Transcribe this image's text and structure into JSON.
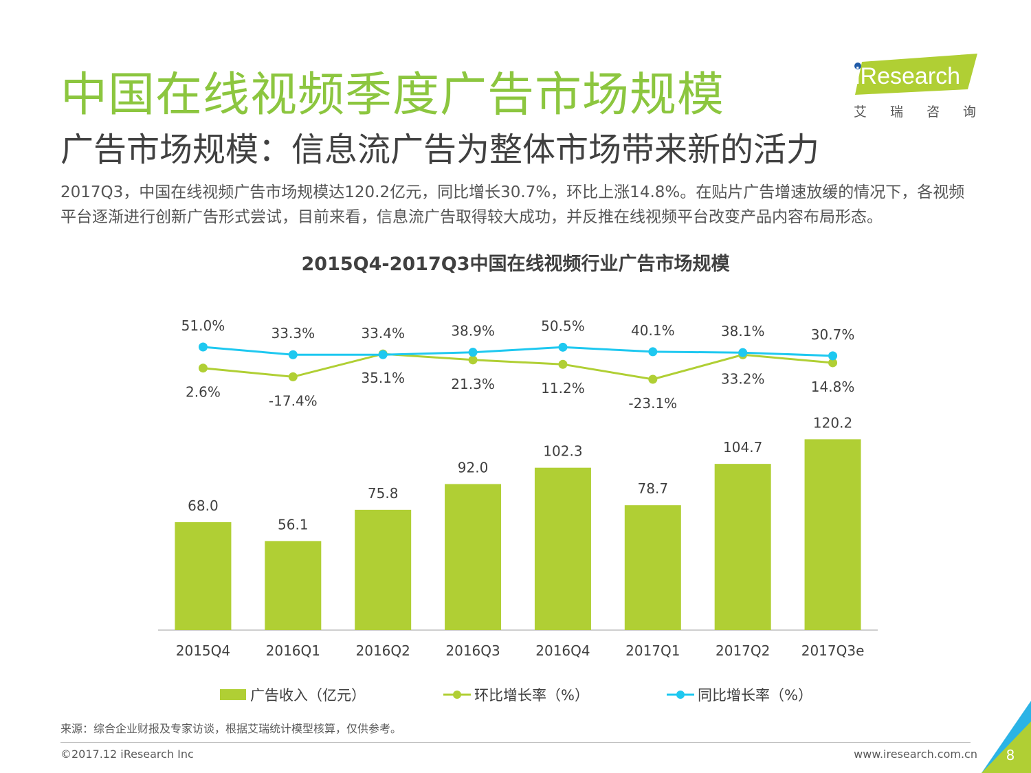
{
  "page": {
    "title": "中国在线视频季度广告市场规模",
    "subtitle": "广告市场规模：信息流广告为整体市场带来新的活力",
    "description": "2017Q3，中国在线视频广告市场规模达120.2亿元，同比增长30.7%，环比上涨14.8%。在贴片广告增速放缓的情况下，各视频平台逐渐进行创新广告形式尝试，目前来看，信息流广告取得较大成功，并反推在线视频平台改变产品内容布局形态。",
    "logo_text": "iResearch",
    "logo_cn": "艾瑞咨询",
    "source": "来源：综合企业财报及专家访谈，根据艾瑞统计模型核算，仅供参考。",
    "copyright": "©2017.12 iResearch Inc",
    "website": "www.iresearch.com.cn",
    "page_number": "8"
  },
  "colors": {
    "title_green": "#8cc63f",
    "bar": "#b0cf34",
    "mom_line": "#b0cf34",
    "yoy_line": "#1ec8f0",
    "text": "#404040"
  },
  "chart_data": {
    "type": "bar",
    "title": "2015Q4-2017Q3中国在线视频行业广告市场规模",
    "categories": [
      "2015Q4",
      "2016Q1",
      "2016Q2",
      "2016Q3",
      "2016Q4",
      "2017Q1",
      "2017Q2",
      "2017Q3e"
    ],
    "series": [
      {
        "name": "广告收入（亿元）",
        "type": "bar",
        "values": [
          68.0,
          56.1,
          75.8,
          92.0,
          102.3,
          78.7,
          104.7,
          120.2
        ],
        "labels": [
          "68.0",
          "56.1",
          "75.8",
          "92.0",
          "102.3",
          "78.7",
          "104.7",
          "120.2"
        ]
      },
      {
        "name": "环比增长率（%）",
        "type": "line",
        "values": [
          2.6,
          -17.4,
          35.1,
          21.3,
          11.2,
          -23.1,
          33.2,
          14.8
        ],
        "labels": [
          "2.6%",
          "-17.4%",
          "35.1%",
          "21.3%",
          "11.2%",
          "-23.1%",
          "33.2%",
          "14.8%"
        ]
      },
      {
        "name": "同比增长率（%）",
        "type": "line",
        "values": [
          51.0,
          33.3,
          33.4,
          38.9,
          50.5,
          40.1,
          38.1,
          30.7
        ],
        "labels": [
          "51.0%",
          "33.3%",
          "33.4%",
          "38.9%",
          "50.5%",
          "40.1%",
          "38.1%",
          "30.7%"
        ]
      }
    ],
    "legend_position": "bottom",
    "grid": false
  }
}
